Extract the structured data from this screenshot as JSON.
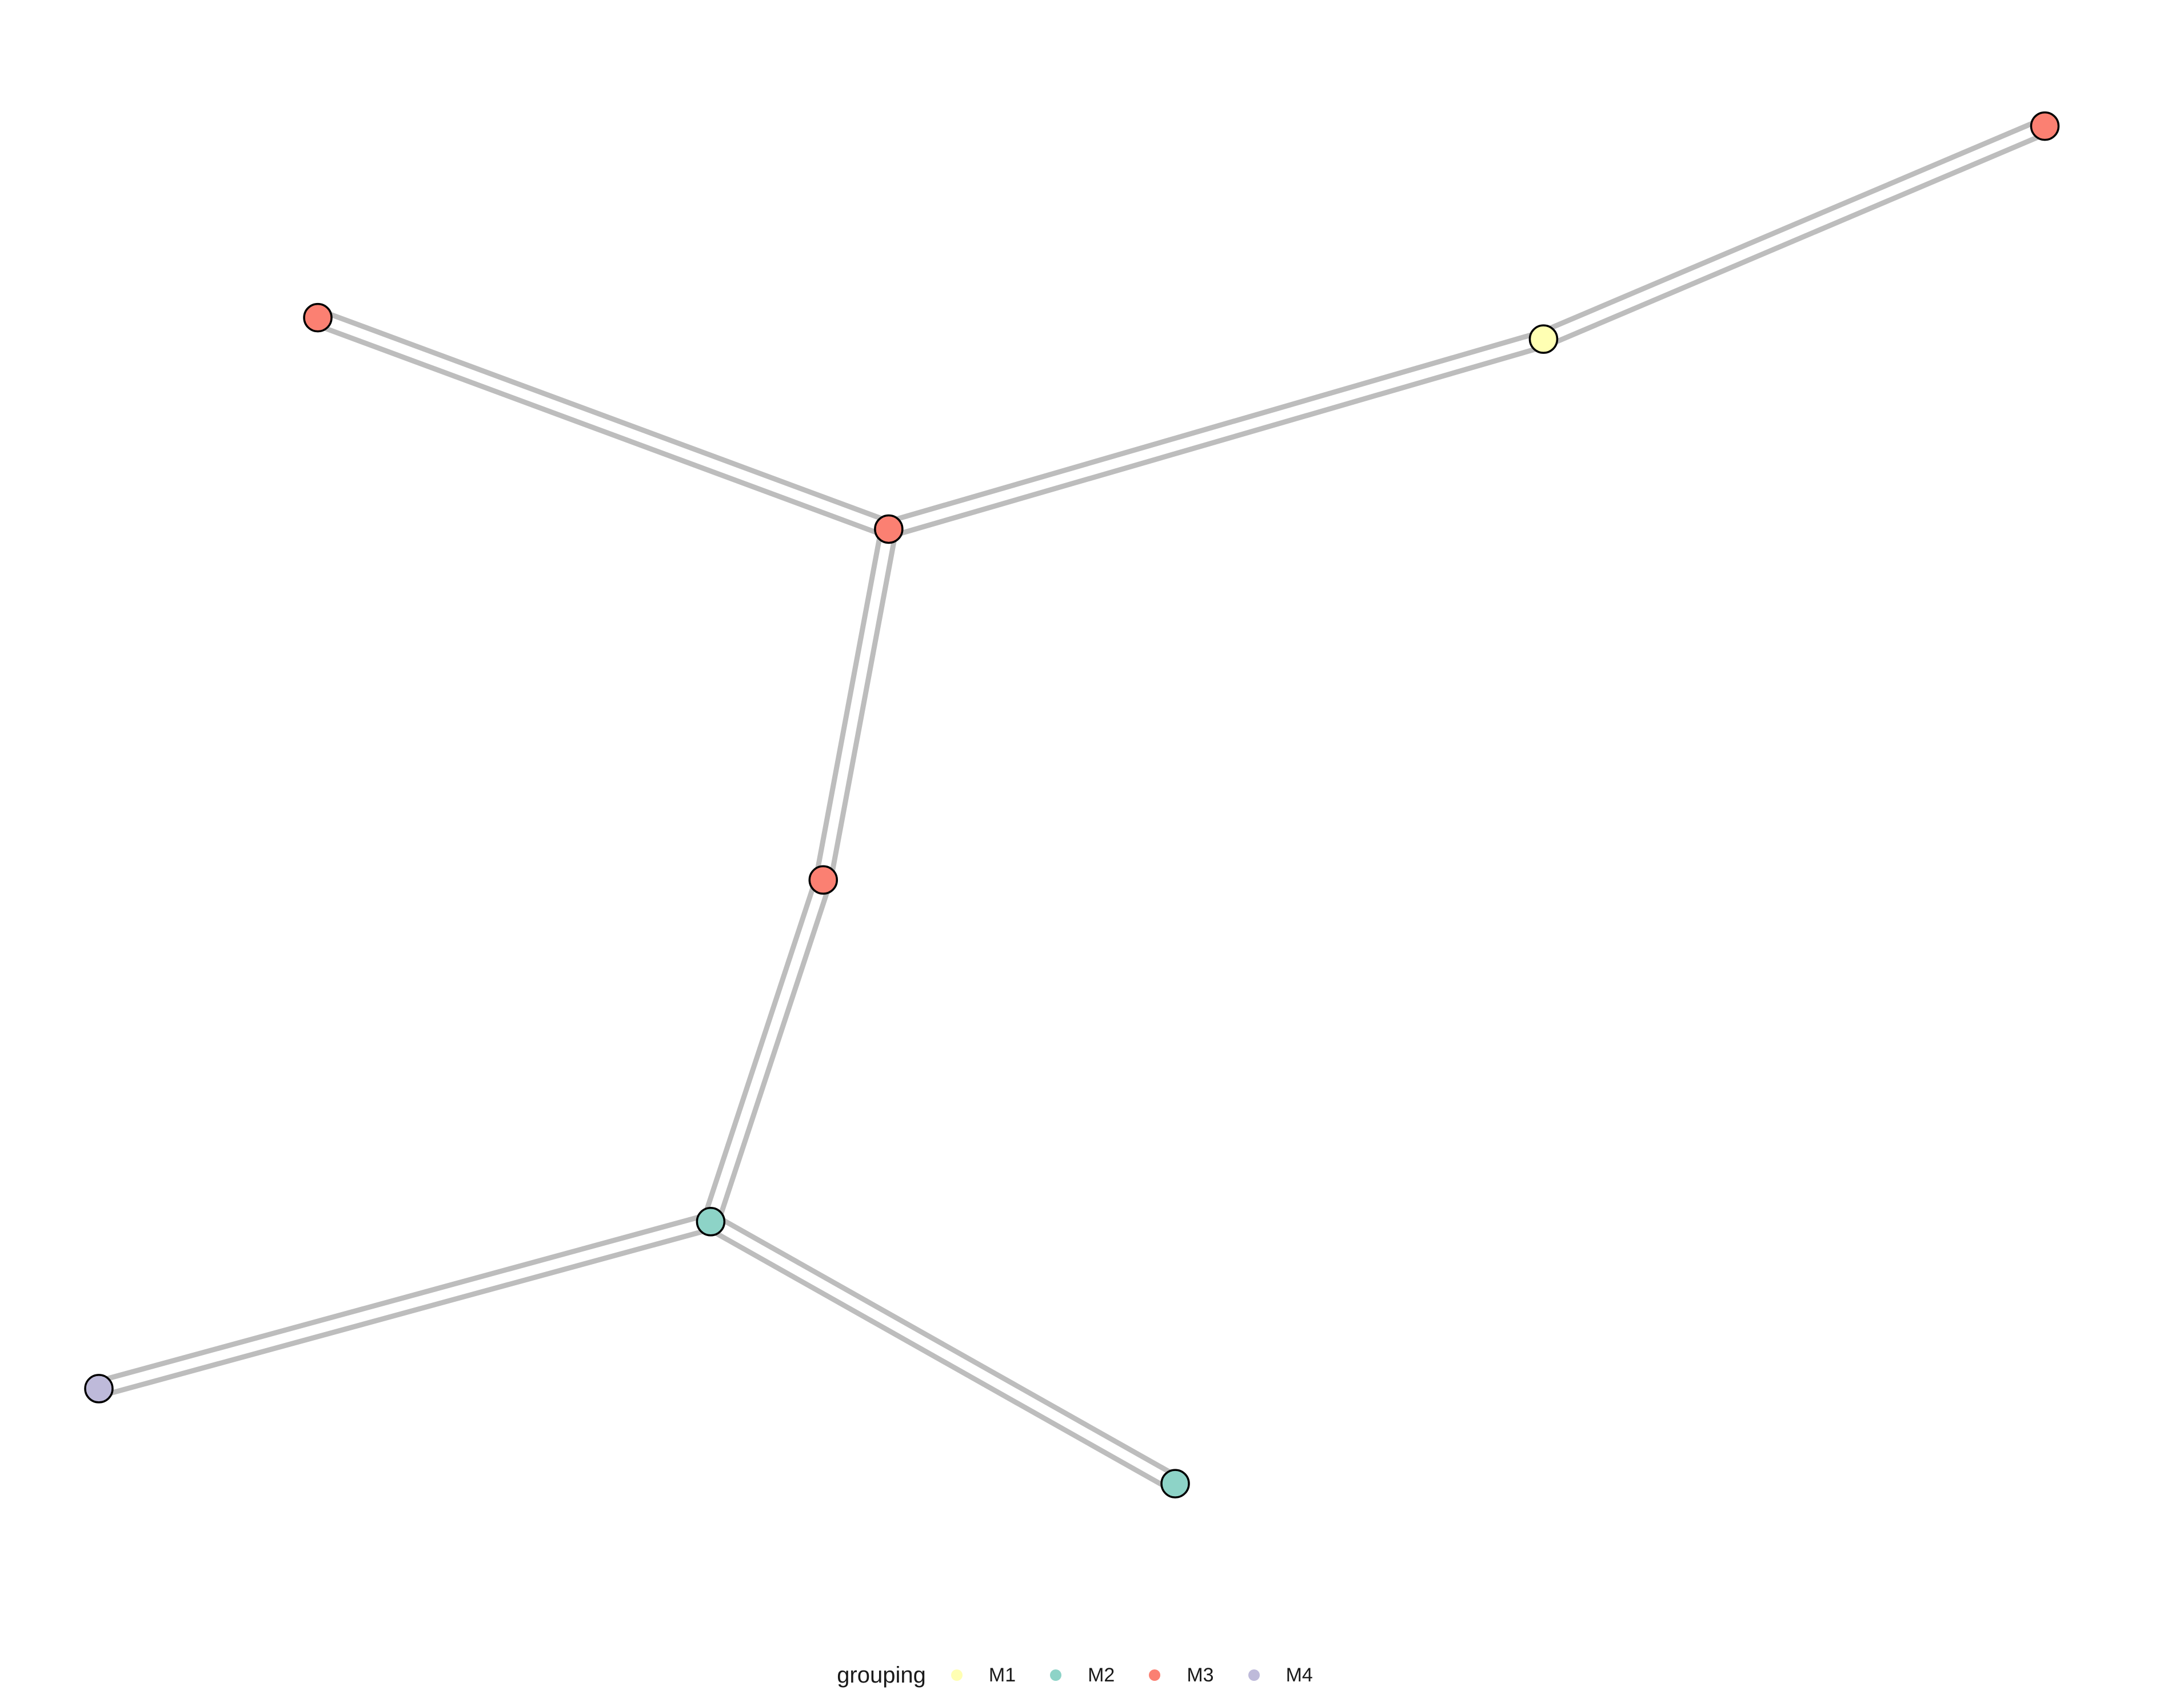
{
  "chart_data": {
    "type": "scatter",
    "title": "",
    "xlabel": "",
    "ylabel": "",
    "axes_visible": false,
    "grid": false,
    "xlim": [
      0,
      1
    ],
    "ylim": [
      0,
      1
    ],
    "legend": {
      "title": "grouping",
      "placement": "bottom",
      "entries": [
        {
          "label": "M1",
          "color": "#FFFFB3"
        },
        {
          "label": "M2",
          "color": "#8DD3C7"
        },
        {
          "label": "M3",
          "color": "#FB8072"
        },
        {
          "label": "M4",
          "color": "#BEBADA"
        }
      ]
    },
    "nodes": [
      {
        "id": "n1",
        "x": 0.119,
        "y": 0.83,
        "group": "M3"
      },
      {
        "id": "n2",
        "x": 0.398,
        "y": 0.692,
        "group": "M3"
      },
      {
        "id": "n3",
        "x": 0.718,
        "y": 0.816,
        "group": "M1"
      },
      {
        "id": "n4",
        "x": 0.963,
        "y": 0.955,
        "group": "M3"
      },
      {
        "id": "n5",
        "x": 0.366,
        "y": 0.463,
        "group": "M3"
      },
      {
        "id": "n6",
        "x": 0.311,
        "y": 0.24,
        "group": "M2"
      },
      {
        "id": "n7",
        "x": 0.012,
        "y": 0.131,
        "group": "M4"
      },
      {
        "id": "n8",
        "x": 0.538,
        "y": 0.069,
        "group": "M2"
      }
    ],
    "edges": [
      [
        "n1",
        "n2"
      ],
      [
        "n2",
        "n3"
      ],
      [
        "n3",
        "n4"
      ],
      [
        "n2",
        "n5"
      ],
      [
        "n5",
        "n6"
      ],
      [
        "n6",
        "n7"
      ],
      [
        "n6",
        "n8"
      ]
    ],
    "edge_color": "#BDBDBD"
  }
}
